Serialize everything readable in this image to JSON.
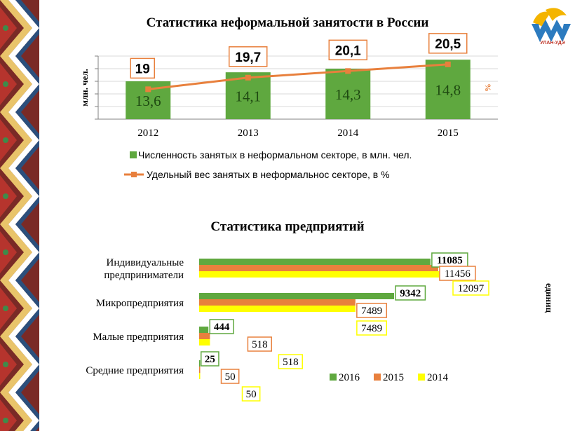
{
  "logo": {
    "text": "УЛАН-УДЭ"
  },
  "chart_data": [
    {
      "type": "bar",
      "title": "Статистика неформальной занятости в России",
      "ylabel": "млн. чел.",
      "y2label": "%",
      "categories": [
        "2012",
        "2013",
        "2014",
        "2015"
      ],
      "series": [
        {
          "name": "Численность занятых в неформальном секторе, в млн. чел.",
          "kind": "bar",
          "axis": "left",
          "color": "#5fa83f",
          "values": [
            13.6,
            14.1,
            14.3,
            14.8
          ],
          "labels": [
            "13,6",
            "14,1",
            "14,3",
            "14,8"
          ]
        },
        {
          "name": "Удельный вес занятых в неформальнос секторе, в %",
          "kind": "line",
          "axis": "right",
          "color": "#e8803d",
          "values": [
            19,
            19.7,
            20.1,
            20.5
          ],
          "labels": [
            "19",
            "19,7",
            "20,1",
            "20,5"
          ]
        }
      ],
      "ylim": [
        11.5,
        15.0
      ],
      "y2lim": [
        17.2,
        21.0
      ],
      "grid": true,
      "legend_position": "bottom"
    },
    {
      "type": "bar",
      "orientation": "horizontal",
      "title": "Статистика предприятий",
      "ylabel": "единиц",
      "categories": [
        "Индивидуальные предприниматели",
        "Микропредприятия",
        "Малые предприятия",
        "Средние предприятия"
      ],
      "category_lines": [
        [
          "Индивидуальные",
          "предприниматели"
        ],
        [
          "Микропредприятия"
        ],
        [
          "Малые предприятия"
        ],
        [
          "Средние предприятия"
        ]
      ],
      "series": [
        {
          "name": "2016",
          "color": "#5fa83f",
          "values": [
            11085,
            9342,
            444,
            25
          ],
          "labels": [
            "11085",
            "9342",
            "444",
            "25"
          ]
        },
        {
          "name": "2015",
          "color": "#e8803d",
          "values": [
            11456,
            7489,
            518,
            50
          ],
          "labels": [
            "11456",
            "7489",
            "518",
            "50"
          ]
        },
        {
          "name": "2014",
          "color": "#ffff00",
          "values": [
            12097,
            7489,
            518,
            50
          ],
          "labels": [
            "12097",
            "7489",
            "518",
            "50"
          ]
        }
      ],
      "xlim": [
        0,
        12500
      ],
      "grid": false,
      "legend_position": "bottom-right"
    }
  ]
}
